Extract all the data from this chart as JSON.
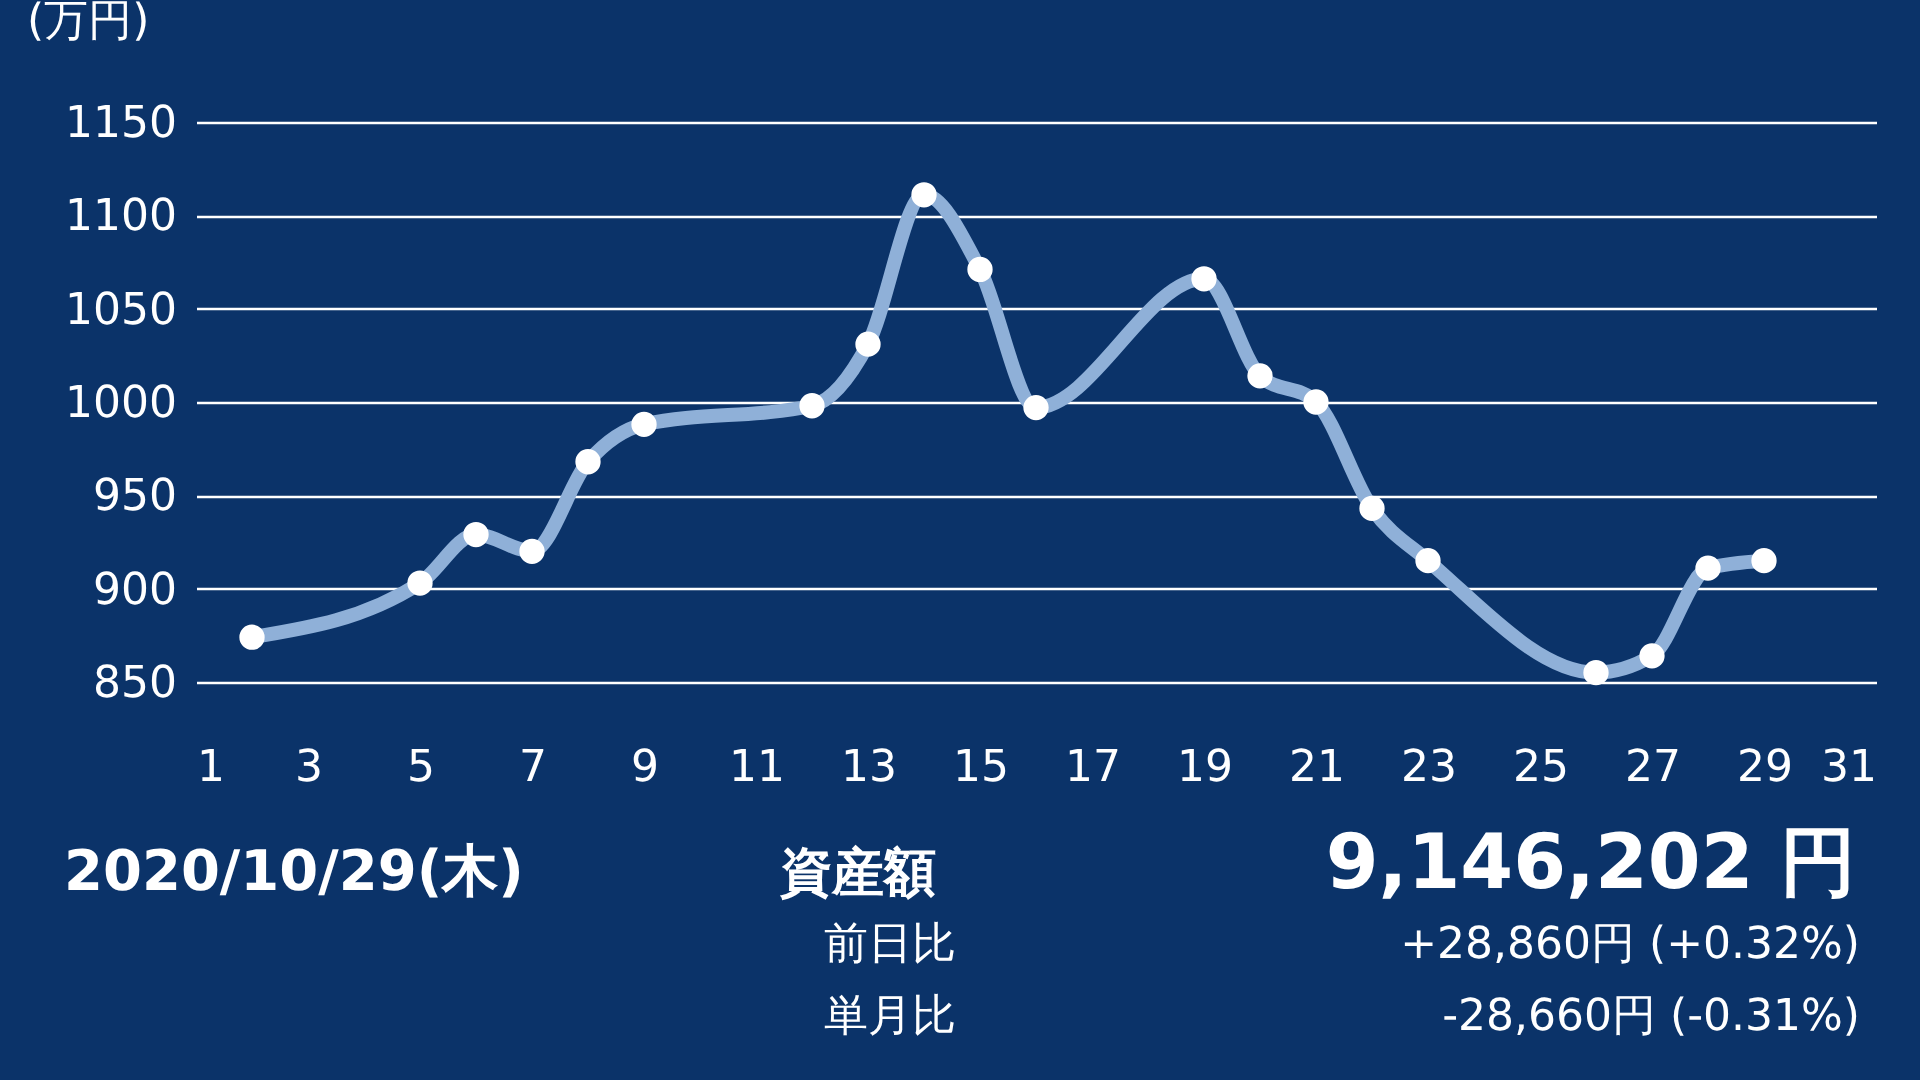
{
  "chart_data": {
    "type": "line",
    "ylabel": "(万円)",
    "x": [
      2,
      5,
      6,
      7,
      8,
      9,
      12,
      13,
      14,
      15,
      16,
      19,
      20,
      21,
      22,
      23,
      26,
      27,
      28,
      29
    ],
    "series": [
      {
        "color": "#8fb0d8",
        "values": [
          874,
          903,
          929,
          920,
          968,
          988,
          998,
          1031,
          1111,
          1071,
          997,
          1066,
          1014,
          1000,
          943,
          915,
          855,
          864,
          911,
          915
        ]
      }
    ],
    "xlim": [
      1,
      31
    ],
    "xticks": [
      1,
      3,
      5,
      7,
      9,
      11,
      13,
      15,
      17,
      19,
      21,
      23,
      25,
      27,
      29,
      31
    ],
    "ylim": [
      850,
      1150
    ],
    "yticks": [
      850,
      900,
      950,
      1000,
      1050,
      1100,
      1150
    ],
    "grid": "y",
    "marker": "circle",
    "line_style": "solid",
    "annotations": [
      "2020/10/29(木)",
      "資産額",
      "9,146,202 円",
      "前日比",
      "+28,860円 (+0.32%)",
      "単月比",
      "-28,660円 (-0.31%)"
    ]
  }
}
